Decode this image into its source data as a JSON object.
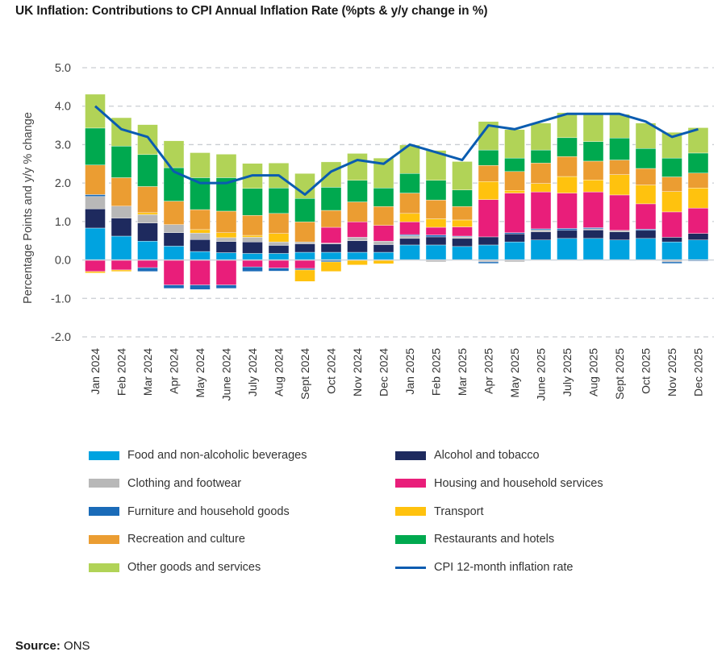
{
  "title": "UK Inflation: Contributions to CPI Annual Inflation Rate (%pts & y/y change in %)",
  "source": {
    "label": "Source:",
    "value": "ONS"
  },
  "chart_data": {
    "type": "bar",
    "stacked": true,
    "title": "UK Inflation: Contributions to CPI Annual Inflation Rate (%pts & y/y change in %)",
    "ylabel": "Percentage Points and y/y % change",
    "xlabel": "",
    "ylim": [
      -2.0,
      5.0
    ],
    "yticks": [
      "5.0",
      "4.0",
      "3.0",
      "2.0",
      "1.0",
      "0.0",
      "-1.0",
      "-2.0"
    ],
    "grid": true,
    "legend_position": "bottom",
    "categories": [
      "Jan 2024",
      "Feb 2024",
      "Mar 2024",
      "Apr 2024",
      "May 2024",
      "June 2024",
      "July 2024",
      "Aug 2024",
      "Sept 2024",
      "Oct 2024",
      "Nov 2024",
      "Dec 2024",
      "Jan 2025",
      "Feb 2025",
      "Mar 2025",
      "Apr 2025",
      "May 2025",
      "June 2025",
      "July 2025",
      "Aug 2025",
      "Sept 2025",
      "Oct 2025",
      "Nov 2025",
      "Dec 2025"
    ],
    "series": [
      {
        "name": "Food and non-alcoholic beverages",
        "color": "#00a3e0",
        "values": [
          0.83,
          0.62,
          0.49,
          0.36,
          0.22,
          0.19,
          0.17,
          0.17,
          0.2,
          0.2,
          0.2,
          0.2,
          0.39,
          0.39,
          0.35,
          0.39,
          0.47,
          0.52,
          0.56,
          0.56,
          0.52,
          0.56,
          0.47,
          0.52
        ]
      },
      {
        "name": "Alcohol and tobacco",
        "color": "#1e2a5e",
        "values": [
          0.5,
          0.47,
          0.47,
          0.35,
          0.31,
          0.29,
          0.3,
          0.21,
          0.22,
          0.22,
          0.3,
          0.2,
          0.17,
          0.21,
          0.21,
          0.21,
          0.21,
          0.21,
          0.21,
          0.22,
          0.21,
          0.21,
          0.12,
          0.17
        ]
      },
      {
        "name": "Clothing and footwear",
        "color": "#b8b8b8",
        "values": [
          0.32,
          0.31,
          0.22,
          0.21,
          0.17,
          0.1,
          0.12,
          0.09,
          0.05,
          0.02,
          0.09,
          0.09,
          0.07,
          -0.05,
          0.04,
          -0.05,
          -0.05,
          0.05,
          0.0,
          0.03,
          0.04,
          0.0,
          -0.05,
          0.0
        ]
      },
      {
        "name": "Furniture and household goods",
        "color": "#1a6bb8",
        "values": [
          0.05,
          0.0,
          -0.1,
          -0.09,
          -0.12,
          -0.09,
          -0.12,
          -0.08,
          -0.04,
          -0.05,
          0.0,
          0.0,
          0.03,
          0.05,
          0.02,
          -0.04,
          0.03,
          0.03,
          0.05,
          0.03,
          0.0,
          0.03,
          -0.04,
          -0.03
        ]
      },
      {
        "name": "Housing and household services",
        "color": "#e91e7a",
        "values": [
          -0.3,
          -0.26,
          -0.2,
          -0.65,
          -0.65,
          -0.65,
          -0.18,
          -0.21,
          -0.22,
          0.41,
          0.4,
          0.41,
          0.33,
          0.2,
          0.24,
          0.97,
          1.03,
          0.96,
          0.92,
          0.93,
          0.92,
          0.66,
          0.66,
          0.66
        ]
      },
      {
        "name": "Transport",
        "color": "#ffc20e",
        "values": [
          -0.04,
          -0.04,
          0.05,
          0.0,
          0.09,
          0.13,
          0.05,
          0.22,
          -0.3,
          -0.25,
          -0.13,
          -0.1,
          0.22,
          0.22,
          0.18,
          0.47,
          0.07,
          0.22,
          0.43,
          0.31,
          0.53,
          0.49,
          0.53,
          0.52
        ]
      },
      {
        "name": "Recreation and culture",
        "color": "#eb9d32",
        "values": [
          0.77,
          0.74,
          0.68,
          0.61,
          0.52,
          0.56,
          0.52,
          0.52,
          0.52,
          0.44,
          0.52,
          0.49,
          0.53,
          0.49,
          0.35,
          0.42,
          0.49,
          0.53,
          0.52,
          0.49,
          0.38,
          0.43,
          0.38,
          0.39
        ]
      },
      {
        "name": "Restaurants and hotels",
        "color": "#00a94f",
        "values": [
          0.96,
          0.82,
          0.83,
          0.87,
          0.83,
          0.87,
          0.7,
          0.66,
          0.61,
          0.6,
          0.56,
          0.48,
          0.51,
          0.51,
          0.43,
          0.4,
          0.35,
          0.34,
          0.49,
          0.51,
          0.57,
          0.52,
          0.49,
          0.52
        ]
      },
      {
        "name": "Other goods and services",
        "color": "#b1d357",
        "values": [
          0.88,
          0.74,
          0.78,
          0.7,
          0.65,
          0.61,
          0.65,
          0.65,
          0.65,
          0.66,
          0.7,
          0.78,
          0.74,
          0.78,
          0.74,
          0.74,
          0.74,
          0.7,
          0.65,
          0.71,
          0.62,
          0.66,
          0.67,
          0.66
        ]
      }
    ],
    "line": {
      "name": "CPI 12-month inflation rate",
      "color": "#0a5cb0",
      "values": [
        4.0,
        3.4,
        3.2,
        2.3,
        2.0,
        2.0,
        2.2,
        2.2,
        1.7,
        2.3,
        2.6,
        2.5,
        3.0,
        2.8,
        2.6,
        3.5,
        3.4,
        3.6,
        3.8,
        3.8,
        3.8,
        3.6,
        3.2,
        3.4
      ]
    }
  }
}
